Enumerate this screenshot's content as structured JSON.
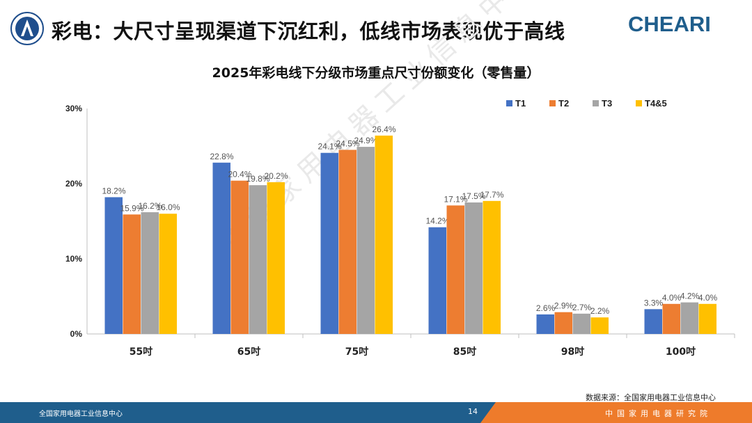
{
  "header": {
    "title": "彩电：大尺寸呈现渠道下沉红利，低线市场表现优于高线",
    "brand": "CHEARI"
  },
  "watermark": "中国家用电器工业信息中心",
  "colors": {
    "T1": "#4472C4",
    "T2": "#ED7D31",
    "T3": "#A5A5A5",
    "T4&5": "#FFC000",
    "footer_blue": "#1F5E8C",
    "footer_orange": "#EE7B2B"
  },
  "chart_data": {
    "type": "bar",
    "title": "2025年彩电线下分级市场重点尺寸份额变化（零售量）",
    "categories": [
      "55吋",
      "65吋",
      "75吋",
      "85吋",
      "98吋",
      "100吋"
    ],
    "series": [
      {
        "name": "T1",
        "values": [
          18.2,
          22.8,
          24.1,
          14.2,
          2.6,
          3.3
        ]
      },
      {
        "name": "T2",
        "values": [
          15.9,
          20.4,
          24.5,
          17.1,
          2.9,
          4.0
        ]
      },
      {
        "name": "T3",
        "values": [
          16.2,
          19.8,
          24.9,
          17.5,
          2.7,
          4.2
        ]
      },
      {
        "name": "T4&5",
        "values": [
          16.0,
          20.2,
          26.4,
          17.7,
          2.2,
          4.0
        ]
      }
    ],
    "y_ticks": [
      "0%",
      "10%",
      "20%",
      "30%"
    ],
    "ylim": [
      0,
      30
    ],
    "legend_position": "top-right",
    "grid": false
  },
  "source": "数据来源：全国家用电器工业信息中心",
  "footer": {
    "left": "全国家用电器工业信息中心",
    "page": "14",
    "right": "中国家用电器研究院"
  }
}
